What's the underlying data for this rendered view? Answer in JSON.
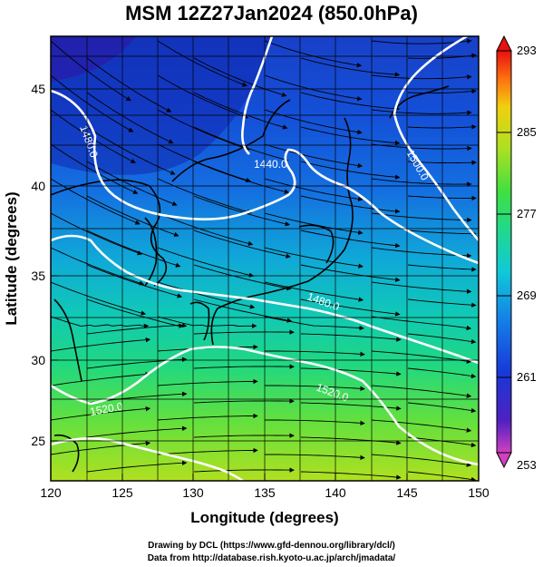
{
  "title": "MSM 12Z27Jan2024 (850.0hPa)",
  "map": {
    "xlabel": "Longitude (degrees)",
    "ylabel": "Latitude  (degrees)",
    "lon_ticks": [
      "120",
      "125",
      "130",
      "135",
      "140",
      "145",
      "150"
    ],
    "lat_ticks": [
      "25",
      "30",
      "35",
      "40",
      "45"
    ],
    "lon_range": [
      120,
      150
    ],
    "lat_range": [
      22.4,
      47.6
    ],
    "contour_labels": [
      "1480.0",
      "1440.0",
      "1500.0",
      "1480.0",
      "1520.0",
      "1520.0"
    ]
  },
  "colorbar": {
    "labels": [
      "293",
      "285",
      "277",
      "269",
      "261",
      "253"
    ],
    "colors": [
      "#cc00aa",
      "#3a00cc",
      "#0030e0",
      "#00a0e0",
      "#00d2b0",
      "#20e060",
      "#90e020",
      "#e0e010",
      "#ff9000",
      "#ff3000",
      "#e00000"
    ]
  },
  "footer": {
    "line1": "Drawing by DCL (https://www.gfd-dennou.org/library/dcl/)",
    "line2": "Data from http://database.rish.kyoto-u.ac.jp/arch/jmadata/"
  }
}
